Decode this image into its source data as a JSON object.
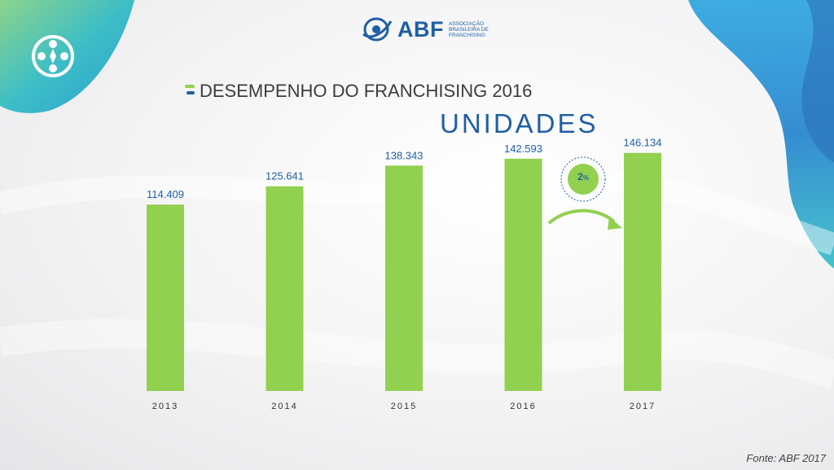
{
  "header": {
    "brand_name": "ABF",
    "brand_description": "ASSOCIAÇÃO BRASILEIRA DE FRANCHISING"
  },
  "subtitle": "DESEMPENHO DO FRANCHISING 2016",
  "title": "UNIDADES",
  "growth_badge": {
    "value": "2",
    "unit": "%"
  },
  "chart_data": {
    "type": "bar",
    "categories": [
      "2013",
      "2014",
      "2015",
      "2016",
      "2017"
    ],
    "values": [
      114409,
      125641,
      138343,
      142593,
      146134
    ],
    "value_labels": [
      "114.409",
      "125.641",
      "138.343",
      "142.593",
      "146.134"
    ],
    "ylim": [
      0,
      200000
    ],
    "grid": false,
    "bar_color": "#92d050",
    "label_color": "#1f5fa3"
  },
  "footer": {
    "source": "Fonte: ABF 2017"
  },
  "colors": {
    "brand_blue": "#1f5fa3",
    "accent_green": "#92d050",
    "teal": "#2bb0c8"
  }
}
